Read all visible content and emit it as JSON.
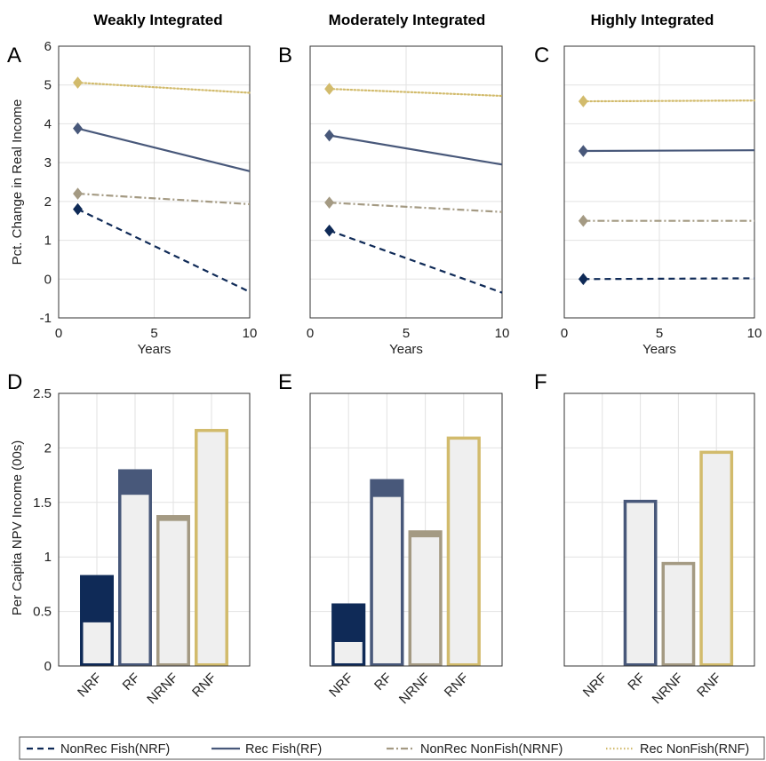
{
  "column_titles": [
    "Weakly Integrated",
    "Moderately Integrated",
    "Highly Integrated"
  ],
  "panel_letters": [
    "A",
    "B",
    "C",
    "D",
    "E",
    "F"
  ],
  "colors": {
    "NRF": "#0f2a57",
    "RF": "#48587a",
    "NRNF": "#a49a83",
    "RNF": "#d2bb6c",
    "fill_light": "#efefef"
  },
  "legend": [
    {
      "label": "NonRec Fish(NRF)",
      "key": "NRF",
      "style": "dashed"
    },
    {
      "label": "Rec Fish(RF)",
      "key": "RF",
      "style": "solid"
    },
    {
      "label": "NonRec NonFish(NRNF)",
      "key": "NRNF",
      "style": "dashdot"
    },
    {
      "label": "Rec NonFish(RNF)",
      "key": "RNF",
      "style": "dotted"
    }
  ],
  "chart_data": [
    {
      "panel": "A",
      "type": "line",
      "title": "Weakly Integrated",
      "xlabel": "Years",
      "ylabel": "Pct. Change in Real Income",
      "xlim": [
        0,
        10
      ],
      "ylim": [
        -1,
        6
      ],
      "xticks": [
        0,
        5,
        10
      ],
      "yticks": [
        -1,
        0,
        1,
        2,
        3,
        4,
        5,
        6
      ],
      "grid": true,
      "series": [
        {
          "name": "NRF",
          "x": [
            1,
            10
          ],
          "y": [
            1.8,
            -0.33
          ],
          "marker_at": [
            1,
            1.8
          ]
        },
        {
          "name": "RF",
          "x": [
            1,
            10
          ],
          "y": [
            3.88,
            2.78
          ],
          "marker_at": [
            1,
            3.88
          ]
        },
        {
          "name": "NRNF",
          "x": [
            1,
            10
          ],
          "y": [
            2.2,
            1.93
          ],
          "marker_at": [
            1,
            2.2
          ]
        },
        {
          "name": "RNF",
          "x": [
            1,
            10
          ],
          "y": [
            5.06,
            4.8
          ],
          "marker_at": [
            1,
            5.06
          ]
        }
      ]
    },
    {
      "panel": "B",
      "type": "line",
      "title": "Moderately Integrated",
      "xlabel": "Years",
      "ylabel": "",
      "xlim": [
        0,
        10
      ],
      "ylim": [
        -1,
        6
      ],
      "xticks": [
        0,
        5,
        10
      ],
      "yticks": [
        -1,
        0,
        1,
        2,
        3,
        4,
        5,
        6
      ],
      "grid": true,
      "series": [
        {
          "name": "NRF",
          "x": [
            1,
            10
          ],
          "y": [
            1.25,
            -0.35
          ],
          "marker_at": [
            1,
            1.25
          ]
        },
        {
          "name": "RF",
          "x": [
            1,
            10
          ],
          "y": [
            3.7,
            2.95
          ],
          "marker_at": [
            1,
            3.7
          ]
        },
        {
          "name": "NRNF",
          "x": [
            1,
            10
          ],
          "y": [
            1.97,
            1.73
          ],
          "marker_at": [
            1,
            1.97
          ]
        },
        {
          "name": "RNF",
          "x": [
            1,
            10
          ],
          "y": [
            4.9,
            4.72
          ],
          "marker_at": [
            1,
            4.9
          ]
        }
      ]
    },
    {
      "panel": "C",
      "type": "line",
      "title": "Highly Integrated",
      "xlabel": "Years",
      "ylabel": "",
      "xlim": [
        0,
        10
      ],
      "ylim": [
        -1,
        6
      ],
      "xticks": [
        0,
        5,
        10
      ],
      "yticks": [
        -1,
        0,
        1,
        2,
        3,
        4,
        5,
        6
      ],
      "grid": true,
      "series": [
        {
          "name": "NRF",
          "x": [
            1,
            10
          ],
          "y": [
            0.0,
            0.02
          ],
          "marker_at": [
            1,
            0.0
          ]
        },
        {
          "name": "RF",
          "x": [
            1,
            10
          ],
          "y": [
            3.3,
            3.32
          ],
          "marker_at": [
            1,
            3.3
          ]
        },
        {
          "name": "NRNF",
          "x": [
            1,
            10
          ],
          "y": [
            1.5,
            1.5
          ],
          "marker_at": [
            1,
            1.5
          ]
        },
        {
          "name": "RNF",
          "x": [
            1,
            10
          ],
          "y": [
            4.58,
            4.6
          ],
          "marker_at": [
            1,
            4.58
          ]
        }
      ]
    },
    {
      "panel": "D",
      "type": "bar",
      "xlabel": "",
      "ylabel": "Per Capita NPV Income (00s)",
      "categories": [
        "NRF",
        "RF",
        "NRNF",
        "RNF"
      ],
      "ylim": [
        0,
        2.5
      ],
      "yticks": [
        0,
        0.5,
        1,
        1.5,
        2,
        2.5
      ],
      "ytick_labels": [
        "0",
        "0.5",
        "1",
        "1.5",
        "2",
        "2.5"
      ],
      "grid": true,
      "totals": [
        0.83,
        1.8,
        1.38,
        2.17
      ],
      "inner_values": [
        0.4,
        1.57,
        1.33,
        2.17
      ]
    },
    {
      "panel": "E",
      "type": "bar",
      "xlabel": "",
      "ylabel": "",
      "categories": [
        "NRF",
        "RF",
        "NRNF",
        "RNF"
      ],
      "ylim": [
        0,
        2.5
      ],
      "yticks": [
        0,
        0.5,
        1,
        1.5,
        2,
        2.5
      ],
      "grid": true,
      "totals": [
        0.57,
        1.71,
        1.24,
        2.1
      ],
      "inner_values": [
        0.22,
        1.55,
        1.18,
        2.1
      ]
    },
    {
      "panel": "F",
      "type": "bar",
      "xlabel": "",
      "ylabel": "",
      "categories": [
        "NRF",
        "RF",
        "NRNF",
        "RNF"
      ],
      "ylim": [
        0,
        2.5
      ],
      "yticks": [
        0,
        0.5,
        1,
        1.5,
        2,
        2.5
      ],
      "grid": true,
      "totals": [
        0,
        1.52,
        0.95,
        1.97
      ],
      "inner_values": [
        0,
        1.52,
        0.95,
        1.97
      ]
    }
  ]
}
